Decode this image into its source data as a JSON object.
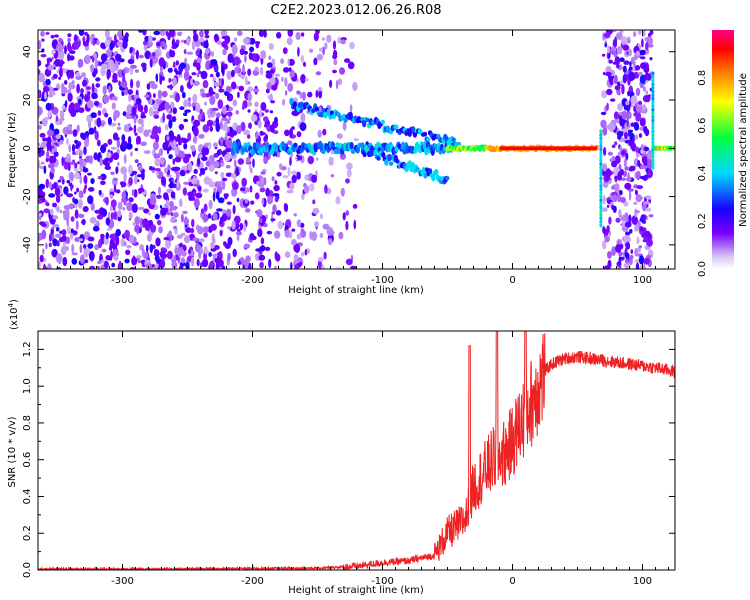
{
  "figure": {
    "title": "C2E2.2023.012.06.26.R08"
  },
  "colors": {
    "snr_line": "#ee2222",
    "background": "#ffffff",
    "axis": "#000000"
  },
  "chart_data": [
    {
      "type": "heatmap",
      "xlabel": "Height of straight line (km)",
      "ylabel": "Frequency (Hz)",
      "xlim": [
        -365,
        125
      ],
      "ylim": [
        -50,
        49
      ],
      "xticks": [
        "-300",
        "-200",
        "-100",
        "0",
        "100"
      ],
      "xtick_values": [
        -300,
        -200,
        -100,
        0,
        100
      ],
      "yticks": [
        "40",
        "20",
        "0",
        "-20",
        "-40"
      ],
      "ytick_values": [
        40,
        20,
        0,
        -20,
        -40
      ],
      "colorbar": {
        "label": "Normalized spectral amplitude",
        "range": [
          0,
          1
        ],
        "ticks": [
          "0.0",
          "0.2",
          "0.4",
          "0.6",
          "0.8"
        ],
        "tick_values": [
          0,
          0.2,
          0.4,
          0.6,
          0.8
        ],
        "colormap": "rainbow (white-violet-blue-cyan-green-yellow-red-magenta)"
      },
      "features": [
        {
          "description": "strong carrier line",
          "x_range": [
            -45,
            65
          ],
          "frequency": 0,
          "amplitude": 0.85
        },
        {
          "description": "broadened signal",
          "x_range": [
            -215,
            -45
          ],
          "frequency": 0,
          "amplitude": 0.3
        },
        {
          "description": "upper sideband",
          "x_range": [
            -170,
            -40
          ],
          "frequency_range": [
            18,
            2
          ],
          "amplitude": 0.25
        },
        {
          "description": "lower sideband",
          "x_range": [
            -110,
            -50
          ],
          "frequency_range": [
            0,
            -13
          ],
          "amplitude": 0.25
        },
        {
          "description": "noise region",
          "x_range": [
            -365,
            -120
          ],
          "amplitude": 0.1
        },
        {
          "description": "noise region",
          "x_range": [
            70,
            107
          ],
          "amplitude": 0.1
        }
      ]
    },
    {
      "type": "line",
      "xlabel": "Height of straight line (km)",
      "ylabel": "SNR (10 * v/v)",
      "y_multiplier": "(x10^4)",
      "xlim": [
        -365,
        125
      ],
      "ylim": [
        0,
        1.3
      ],
      "xticks": [
        "-300",
        "-200",
        "-100",
        "0",
        "100"
      ],
      "xtick_values": [
        -300,
        -200,
        -100,
        0,
        100
      ],
      "yticks": [
        "0.0",
        "0.2",
        "0.4",
        "0.6",
        "0.8",
        "1.0",
        "1.2"
      ],
      "ytick_values": [
        0,
        0.2,
        0.4,
        0.6,
        0.8,
        1.0,
        1.2
      ],
      "series": [
        {
          "x": [
            -365,
            -300,
            -250,
            -200,
            -150,
            -120,
            -100,
            -80,
            -60,
            -50,
            -40,
            -35,
            -30,
            -25,
            -20,
            -15,
            -10,
            -5,
            0,
            5,
            10,
            15,
            20,
            25,
            30,
            40,
            50,
            60,
            70,
            80,
            90,
            100,
            110,
            125
          ],
          "y": [
            0.005,
            0.005,
            0.006,
            0.008,
            0.01,
            0.02,
            0.04,
            0.05,
            0.08,
            0.2,
            0.25,
            0.3,
            0.45,
            0.5,
            0.55,
            0.6,
            0.62,
            0.64,
            0.7,
            0.78,
            0.85,
            0.92,
            1.0,
            1.08,
            1.12,
            1.15,
            1.16,
            1.15,
            1.14,
            1.13,
            1.12,
            1.11,
            1.1,
            1.08
          ],
          "spikes": [
            {
              "x": -33,
              "y": 1.22
            },
            {
              "x": -12,
              "y": 1.35
            },
            {
              "x": 10,
              "y": 1.35
            }
          ]
        }
      ]
    }
  ]
}
